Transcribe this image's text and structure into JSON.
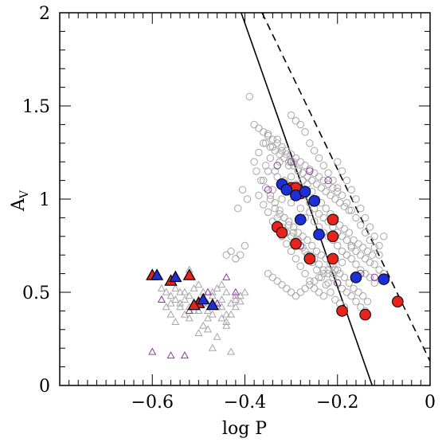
{
  "chart_data": {
    "type": "scatter",
    "xlabel": "log P",
    "ylabel": {
      "main": "A",
      "sub": "V"
    },
    "xlim": [
      -0.8,
      0.0
    ],
    "ylim": [
      0,
      2
    ],
    "xticks": [
      -0.6,
      -0.4,
      -0.2,
      0
    ],
    "xtick_labels": [
      "−0.6",
      "−0.4",
      "−0.2",
      "0"
    ],
    "yticks": [
      0,
      0.5,
      1,
      1.5,
      2
    ],
    "ytick_labels": [
      "0",
      "0.5",
      "1",
      "1.5",
      "2"
    ],
    "grid": false,
    "colors": {
      "gray": "#a6a6a6",
      "purple": "#8b3a9c",
      "red": "#e8231b",
      "blue": "#1f2fd6",
      "black": "#000000"
    },
    "lines": [
      {
        "style": "solid",
        "x": [
          -0.408,
          -0.125
        ],
        "y": [
          2.0,
          0.0
        ]
      },
      {
        "style": "dashed",
        "x": [
          -0.363,
          0.0
        ],
        "y": [
          2.0,
          0.13
        ]
      }
    ],
    "series": [
      {
        "marker": "circle-open",
        "color": "gray",
        "x": [
          -0.38,
          -0.37,
          -0.36,
          -0.355,
          -0.35,
          -0.345,
          -0.34,
          -0.335,
          -0.33,
          -0.325,
          -0.32,
          -0.315,
          -0.31,
          -0.305,
          -0.3,
          -0.295,
          -0.29,
          -0.285,
          -0.28,
          -0.275,
          -0.27,
          -0.265,
          -0.26,
          -0.255,
          -0.25,
          -0.245,
          -0.24,
          -0.235,
          -0.23,
          -0.225,
          -0.22,
          -0.215,
          -0.21,
          -0.205,
          -0.2,
          -0.195,
          -0.19,
          -0.185,
          -0.18,
          -0.175,
          -0.17,
          -0.165,
          -0.16,
          -0.155,
          -0.15,
          -0.145,
          -0.14,
          -0.135,
          -0.13,
          -0.125,
          -0.12,
          -0.11,
          -0.1,
          -0.36,
          -0.35,
          -0.34,
          -0.33,
          -0.32,
          -0.31,
          -0.3,
          -0.29,
          -0.28,
          -0.27,
          -0.26,
          -0.25,
          -0.24,
          -0.23,
          -0.22,
          -0.21,
          -0.2,
          -0.19,
          -0.18,
          -0.17,
          -0.16,
          -0.15,
          -0.14,
          -0.13,
          -0.12,
          -0.345,
          -0.335,
          -0.325,
          -0.315,
          -0.305,
          -0.295,
          -0.285,
          -0.275,
          -0.265,
          -0.255,
          -0.245,
          -0.235,
          -0.225,
          -0.215,
          -0.205,
          -0.195,
          -0.185,
          -0.175,
          -0.165,
          -0.155,
          -0.145,
          -0.135,
          -0.33,
          -0.32,
          -0.31,
          -0.3,
          -0.29,
          -0.28,
          -0.27,
          -0.26,
          -0.25,
          -0.24,
          -0.23,
          -0.22,
          -0.21,
          -0.2,
          -0.19,
          -0.18,
          -0.17,
          -0.16,
          -0.15,
          -0.14,
          -0.355,
          -0.345,
          -0.335,
          -0.325,
          -0.315,
          -0.305,
          -0.295,
          -0.285,
          -0.275,
          -0.265,
          -0.255,
          -0.245,
          -0.235,
          -0.225,
          -0.215,
          -0.205,
          -0.195,
          -0.185,
          -0.175,
          -0.37,
          -0.36,
          -0.35,
          -0.34,
          -0.33,
          -0.32,
          -0.31,
          -0.3,
          -0.29,
          -0.28,
          -0.27,
          -0.26,
          -0.25,
          -0.24,
          -0.23,
          -0.22,
          -0.21,
          -0.2,
          -0.19,
          -0.18,
          -0.17,
          -0.375,
          -0.365,
          -0.355,
          -0.345,
          -0.335,
          -0.325,
          -0.315,
          -0.305,
          -0.295,
          -0.285,
          -0.275,
          -0.265,
          -0.255,
          -0.245,
          -0.235,
          -0.225,
          -0.215,
          -0.205,
          -0.195,
          -0.185,
          -0.39,
          -0.4,
          -0.41,
          -0.42,
          -0.43,
          -0.44,
          -0.395,
          -0.405,
          -0.415,
          -0.38,
          -0.37,
          -0.36,
          -0.35,
          -0.34,
          -0.33,
          -0.32,
          -0.31,
          -0.3,
          -0.29,
          -0.28,
          -0.27,
          -0.26,
          -0.25,
          -0.24,
          -0.23,
          -0.22,
          -0.21,
          -0.2,
          -0.35,
          -0.34,
          -0.33,
          -0.32,
          -0.31,
          -0.3,
          -0.29,
          -0.28,
          -0.27,
          -0.26,
          -0.25,
          -0.24,
          -0.23,
          -0.22,
          -0.21,
          -0.3,
          -0.29,
          -0.28,
          -0.27,
          -0.26,
          -0.25,
          -0.24,
          -0.23,
          -0.22,
          -0.21,
          -0.2,
          -0.19,
          -0.18,
          -0.17,
          -0.16,
          -0.15,
          -0.14,
          -0.13,
          -0.12,
          -0.11,
          -0.2,
          -0.19,
          -0.18,
          -0.17,
          -0.16,
          -0.15,
          -0.14,
          -0.13,
          -0.12,
          -0.11,
          -0.1
        ],
        "y": [
          1.2,
          1.25,
          1.3,
          1.18,
          1.35,
          1.22,
          1.28,
          1.15,
          1.32,
          1.2,
          1.26,
          1.1,
          1.24,
          1.18,
          1.12,
          1.2,
          1.08,
          1.15,
          1.05,
          1.1,
          1.02,
          1.08,
          0.98,
          1.04,
          0.95,
          1.0,
          0.92,
          0.98,
          0.9,
          0.95,
          0.88,
          0.92,
          0.85,
          0.9,
          0.82,
          0.86,
          0.8,
          0.84,
          0.78,
          0.82,
          0.75,
          0.78,
          0.72,
          0.76,
          0.7,
          0.74,
          0.68,
          0.72,
          0.66,
          0.7,
          0.65,
          0.62,
          0.6,
          1.1,
          1.15,
          1.05,
          1.12,
          1.0,
          1.08,
          0.98,
          1.02,
          0.95,
          0.9,
          0.93,
          0.88,
          0.85,
          0.82,
          0.8,
          0.78,
          0.75,
          0.72,
          0.7,
          0.68,
          0.65,
          0.62,
          0.6,
          0.58,
          0.55,
          1.0,
          0.95,
          0.92,
          0.9,
          0.88,
          0.85,
          0.82,
          0.8,
          0.78,
          0.75,
          0.72,
          0.7,
          0.68,
          0.65,
          0.62,
          0.6,
          0.58,
          0.55,
          0.52,
          0.5,
          0.48,
          0.45,
          0.9,
          0.85,
          0.82,
          0.8,
          0.78,
          0.75,
          0.72,
          0.7,
          0.68,
          0.65,
          0.62,
          0.6,
          0.58,
          0.55,
          0.52,
          0.5,
          0.48,
          0.45,
          0.42,
          0.4,
          1.3,
          1.28,
          1.26,
          1.24,
          1.22,
          1.2,
          1.18,
          1.16,
          1.14,
          1.12,
          1.1,
          1.08,
          1.06,
          1.04,
          1.02,
          1.0,
          0.98,
          0.96,
          0.94,
          1.02,
          0.97,
          0.93,
          0.88,
          0.84,
          0.8,
          0.76,
          0.72,
          0.68,
          0.64,
          0.6,
          0.56,
          0.52,
          0.5,
          0.48,
          0.55,
          0.6,
          0.62,
          0.66,
          0.7,
          0.74,
          1.15,
          1.1,
          1.06,
          1.02,
          0.98,
          0.94,
          0.9,
          0.86,
          0.82,
          0.78,
          0.74,
          0.7,
          0.66,
          0.62,
          0.58,
          0.54,
          0.5,
          0.46,
          0.44,
          0.42,
          1.55,
          0.75,
          0.7,
          0.68,
          0.72,
          0.7,
          1.0,
          1.05,
          0.95,
          1.4,
          1.38,
          1.36,
          1.34,
          1.32,
          1.3,
          1.28,
          1.26,
          1.24,
          1.22,
          1.2,
          1.18,
          1.16,
          1.14,
          1.12,
          1.1,
          1.08,
          1.06,
          1.04,
          0.6,
          0.58,
          0.56,
          0.54,
          0.52,
          0.5,
          0.48,
          0.5,
          0.52,
          0.54,
          0.56,
          0.58,
          0.6,
          0.62,
          0.64,
          1.45,
          1.42,
          1.4,
          1.36,
          1.3,
          1.26,
          1.22,
          1.18,
          1.14,
          1.1,
          1.06,
          1.02,
          0.98,
          0.94,
          0.9,
          0.86,
          0.82,
          0.78,
          0.74,
          0.7,
          1.2,
          1.15,
          1.1,
          1.05,
          1.0,
          0.95,
          0.9,
          0.85,
          0.8,
          0.75,
          0.8
        ]
      },
      {
        "marker": "circle-open",
        "color": "purple",
        "x": [
          -0.33,
          -0.3,
          -0.26,
          -0.22,
          -0.15,
          -0.12,
          -0.28,
          -0.2,
          -0.35
        ],
        "y": [
          1.18,
          1.2,
          1.15,
          1.1,
          0.6,
          0.58,
          0.75,
          0.55,
          1.05
        ]
      },
      {
        "marker": "triangle-open",
        "color": "gray",
        "x": [
          -0.58,
          -0.57,
          -0.56,
          -0.55,
          -0.54,
          -0.53,
          -0.52,
          -0.51,
          -0.5,
          -0.49,
          -0.48,
          -0.47,
          -0.46,
          -0.45,
          -0.44,
          -0.43,
          -0.42,
          -0.41,
          -0.58,
          -0.56,
          -0.54,
          -0.52,
          -0.5,
          -0.48,
          -0.46,
          -0.44,
          -0.42,
          -0.57,
          -0.55,
          -0.53,
          -0.51,
          -0.49,
          -0.47,
          -0.45,
          -0.43,
          -0.41,
          -0.56,
          -0.54,
          -0.52,
          -0.5,
          -0.48,
          -0.46,
          -0.44,
          -0.42,
          -0.55,
          -0.53,
          -0.51,
          -0.49,
          -0.47,
          -0.45,
          -0.5,
          -0.48,
          -0.46,
          -0.44,
          -0.52,
          -0.45,
          -0.47,
          -0.43,
          -0.4
        ],
        "y": [
          0.52,
          0.5,
          0.48,
          0.46,
          0.44,
          0.5,
          0.48,
          0.52,
          0.46,
          0.5,
          0.44,
          0.48,
          0.42,
          0.46,
          0.5,
          0.44,
          0.48,
          0.45,
          0.46,
          0.44,
          0.5,
          0.42,
          0.54,
          0.4,
          0.52,
          0.38,
          0.46,
          0.42,
          0.52,
          0.46,
          0.4,
          0.44,
          0.5,
          0.42,
          0.38,
          0.48,
          0.38,
          0.42,
          0.36,
          0.4,
          0.36,
          0.44,
          0.34,
          0.42,
          0.34,
          0.38,
          0.44,
          0.32,
          0.38,
          0.36,
          0.28,
          0.3,
          0.26,
          0.32,
          0.62,
          0.54,
          0.2,
          0.18,
          0.5
        ]
      },
      {
        "marker": "triangle-open",
        "color": "purple",
        "x": [
          -0.6,
          -0.56,
          -0.53,
          -0.48,
          -0.44,
          -0.42,
          -0.58,
          -0.52,
          -0.46
        ],
        "y": [
          0.18,
          0.16,
          0.16,
          0.5,
          0.58,
          0.5,
          0.46,
          0.4,
          0.44
        ]
      },
      {
        "marker": "circle-filled",
        "color": "red",
        "x": [
          -0.3,
          -0.28,
          -0.33,
          -0.32,
          -0.29,
          -0.26,
          -0.21,
          -0.21,
          -0.21,
          -0.19,
          -0.14,
          -0.07,
          -0.26,
          -0.29
        ],
        "y": [
          1.06,
          1.03,
          0.85,
          0.82,
          0.76,
          0.68,
          0.89,
          0.8,
          0.68,
          0.4,
          0.38,
          0.45,
          0.68,
          1.06
        ]
      },
      {
        "marker": "circle-filled",
        "color": "blue",
        "x": [
          -0.32,
          -0.31,
          -0.29,
          -0.27,
          -0.25,
          -0.28,
          -0.24,
          -0.16,
          -0.1
        ],
        "y": [
          1.08,
          1.05,
          1.02,
          1.04,
          0.99,
          0.89,
          0.81,
          0.58,
          0.57
        ]
      },
      {
        "marker": "triangle-filled",
        "color": "red",
        "x": [
          -0.6,
          -0.56,
          -0.52,
          -0.5,
          -0.51
        ],
        "y": [
          0.59,
          0.56,
          0.59,
          0.44,
          0.43
        ]
      },
      {
        "marker": "triangle-filled",
        "color": "blue",
        "x": [
          -0.59,
          -0.55,
          -0.49,
          -0.47
        ],
        "y": [
          0.59,
          0.58,
          0.46,
          0.43
        ]
      }
    ]
  }
}
